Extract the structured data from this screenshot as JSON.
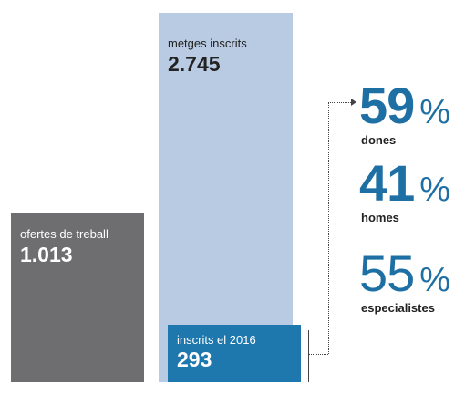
{
  "chart_data": {
    "type": "bar",
    "bars": [
      {
        "label": "ofertes de treball",
        "value_text": "1.013",
        "value": 1013,
        "color": "#6e6e70"
      },
      {
        "label": "metges inscrits",
        "value_text": "2.745",
        "value": 2745,
        "color": "#b9cbe2"
      },
      {
        "label": "inscrits el 2016",
        "value_text": "293",
        "value": 293,
        "color": "#1e78ae"
      }
    ],
    "stats": [
      {
        "value": "59",
        "unit": "%",
        "caption": "dones"
      },
      {
        "value": "41",
        "unit": "%",
        "caption": "homes"
      },
      {
        "value": "55",
        "unit": "%",
        "caption": "especialistes"
      }
    ],
    "accent_color": "#1e6fa4"
  }
}
